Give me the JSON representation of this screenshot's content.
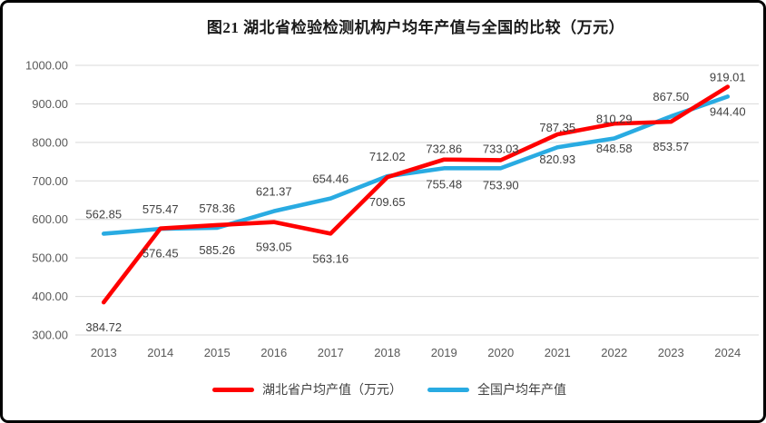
{
  "title": "图21 湖北省检验检测机构户均年产值与全国的比较（万元）",
  "chart_data": {
    "type": "line",
    "categories": [
      "2013",
      "2014",
      "2015",
      "2016",
      "2017",
      "2018",
      "2019",
      "2020",
      "2021",
      "2022",
      "2023",
      "2024"
    ],
    "series": [
      {
        "name": "湖北省户均产值（万元）",
        "color": "#FF0000",
        "label_position": "below",
        "values": [
          384.72,
          576.45,
          585.26,
          593.05,
          563.16,
          709.65,
          755.48,
          753.9,
          820.93,
          848.58,
          853.57,
          944.4
        ]
      },
      {
        "name": "全国户均年产值",
        "color": "#29ABE2",
        "label_position": "above",
        "values": [
          562.85,
          575.47,
          578.36,
          621.37,
          654.46,
          712.02,
          732.86,
          733.03,
          787.35,
          810.29,
          867.5,
          919.01
        ]
      }
    ],
    "xlabel": "",
    "ylabel": "",
    "ylim": [
      300,
      1000
    ],
    "ytick_step": 100,
    "ytick_labels": [
      "300.00",
      "400.00",
      "500.00",
      "600.00",
      "700.00",
      "800.00",
      "900.00",
      "1000.00"
    ],
    "value_decimals": 2,
    "grid": true,
    "legend_position": "bottom",
    "colors": {
      "gridline": "#D9D9D9",
      "axis_text": "#595959",
      "data_label": "#404040",
      "title_text": "#1A1A1A",
      "legend_text": "#404040",
      "frame_border": "#000000",
      "background": "#FFFFFF"
    }
  }
}
